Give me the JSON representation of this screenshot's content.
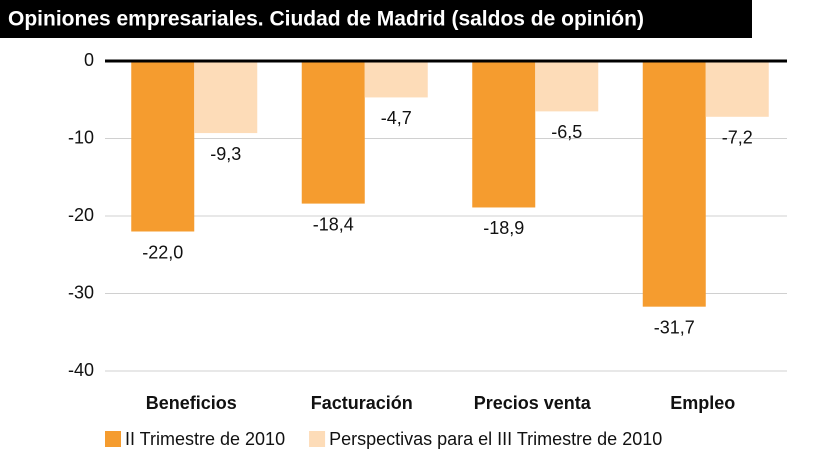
{
  "chart_data": {
    "type": "bar",
    "title": "Opiniones empresariales. Ciudad de Madrid  (saldos de opinión)",
    "categories": [
      "Beneficios",
      "Facturación",
      "Precios venta",
      "Empleo"
    ],
    "series": [
      {
        "name": "II Trimestre de 2010",
        "color": "#f59c2f",
        "values": [
          -22.0,
          -18.4,
          -18.9,
          -31.7
        ],
        "value_labels": [
          "-22,0",
          "-18,4",
          "-18,9",
          "-31,7"
        ]
      },
      {
        "name": "Perspectivas para el III Trimestre de 2010",
        "color": "#fddcb8",
        "values": [
          -9.3,
          -4.7,
          -6.5,
          -7.2
        ],
        "value_labels": [
          "-9,3",
          "-4,7",
          "-6,5",
          "-7,2"
        ]
      }
    ],
    "ylim": [
      -40,
      0
    ],
    "yticks": [
      0,
      -10,
      -20,
      -30,
      -40
    ],
    "grid": true
  }
}
